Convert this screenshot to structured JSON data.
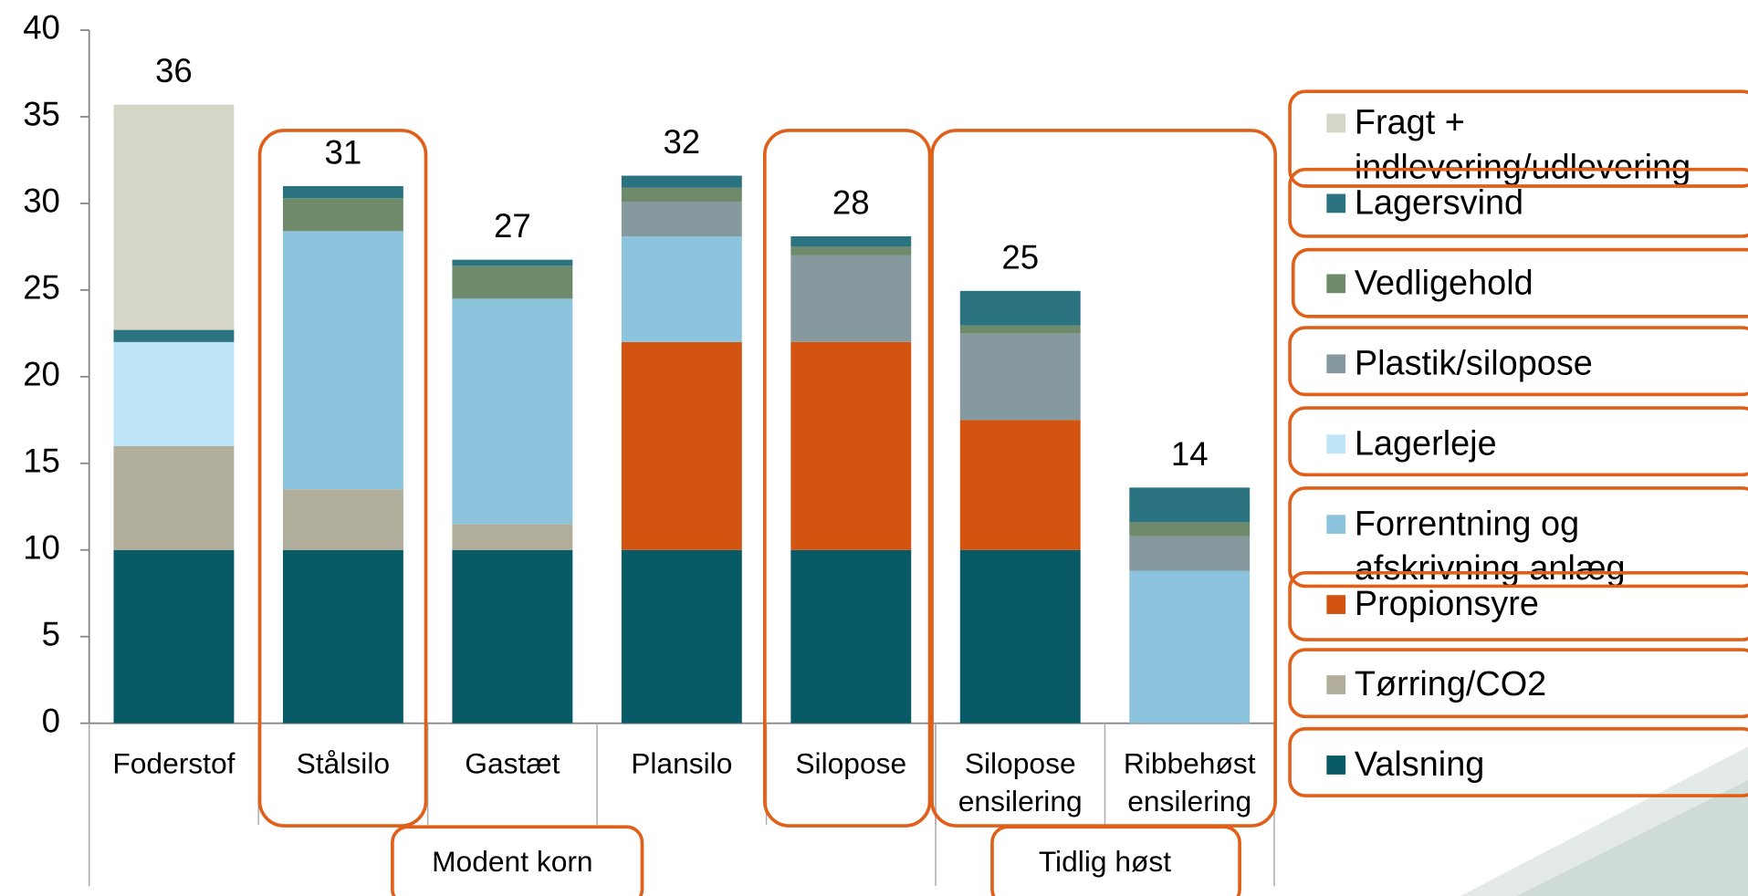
{
  "chart_data": {
    "type": "stacked-bar",
    "categories": [
      "Foderstof",
      "Stålsilo",
      "Gastæt",
      "Plansilo",
      "Silopose",
      "Silopose ensilering",
      "Ribbehøst ensilering"
    ],
    "groups": [
      {
        "label": "Modent korn",
        "count": 5
      },
      {
        "label": "Tidlig høst",
        "count": 2
      }
    ],
    "series": [
      {
        "name": "Valsning",
        "color": "#075a66",
        "values": [
          10,
          10,
          10,
          10,
          10,
          10,
          null
        ]
      },
      {
        "name": "Tørring/CO2",
        "color": "#b0ae9b",
        "values": [
          6,
          3.5,
          1.5,
          null,
          null,
          null,
          null
        ]
      },
      {
        "name": "Propionsyre",
        "color": "#d35410",
        "values": [
          null,
          null,
          null,
          12,
          12,
          7.5,
          null
        ]
      },
      {
        "name": "Forrentning og afskrivning anlæg",
        "color": "#8cc3dd",
        "values": [
          null,
          14.9,
          13,
          6.1,
          null,
          null,
          8.8
        ]
      },
      {
        "name": "Lagerleje",
        "color": "#bde4f7",
        "values": [
          6,
          null,
          null,
          null,
          null,
          null,
          null
        ]
      },
      {
        "name": "Plastik/silopose",
        "color": "#86999f",
        "values": [
          null,
          null,
          null,
          2,
          5,
          5,
          2
        ]
      },
      {
        "name": "Vedligehold",
        "color": "#6e8a6b",
        "values": [
          null,
          1.9,
          1.9,
          0.8,
          0.5,
          0.45,
          0.8
        ]
      },
      {
        "name": "Lagersvind",
        "color": "#2c7382",
        "values": [
          0.7,
          0.7,
          0.35,
          0.7,
          0.6,
          2,
          2
        ]
      },
      {
        "name": "Fragt + indlevering/udlevering",
        "color": "#d5d6c8",
        "values": [
          13,
          null,
          null,
          null,
          null,
          null,
          null
        ]
      }
    ],
    "totals": [
      36,
      31,
      27,
      32,
      28,
      25,
      14
    ],
    "ylim": [
      0,
      40
    ],
    "yticks": [
      0,
      5,
      10,
      15,
      20,
      25,
      30,
      35,
      40
    ],
    "legend": "right"
  }
}
